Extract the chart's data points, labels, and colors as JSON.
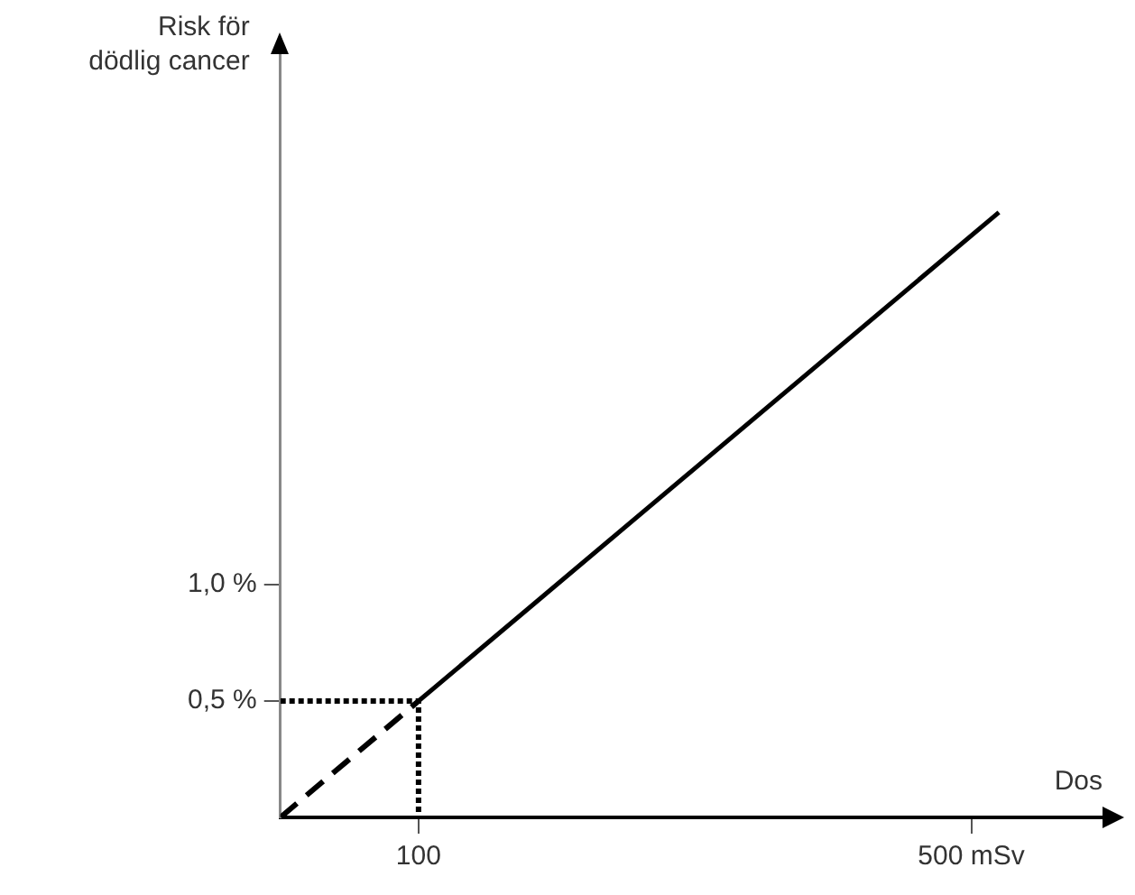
{
  "chart_data": {
    "type": "line",
    "ylabel": "Risk för dödlig cancer",
    "xlabel": "Dos",
    "xlim": [
      0,
      595
    ],
    "ylim": [
      0,
      3.28
    ],
    "xticks": [
      100,
      {
        "value": 500,
        "label": "500 mSv"
      }
    ],
    "yticks": [
      {
        "value": 0.5,
        "label": "0,5 %"
      },
      {
        "value": 1,
        "label": "1,0 %"
      }
    ],
    "grid": false,
    "legend": false,
    "marker": "none",
    "series": [
      {
        "type": "line",
        "x": [
          0,
          100
        ],
        "values": [
          0,
          0.5
        ],
        "color": "#000000",
        "line_style": "dashed"
      },
      {
        "type": "line",
        "x": [
          100,
          520
        ],
        "values": [
          0.5,
          2.6
        ],
        "color": "#000000",
        "line_style": "solid"
      },
      {
        "type": "line",
        "x": [
          0,
          100,
          100
        ],
        "values": [
          0.5,
          0.5,
          0
        ],
        "color": "#000000",
        "line_style": "dotted"
      }
    ]
  }
}
